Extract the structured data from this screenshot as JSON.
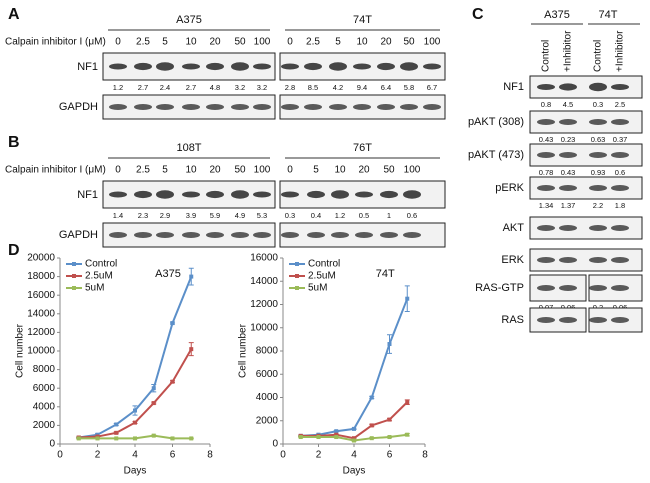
{
  "panel_a": {
    "label": "A",
    "row_label": "Calpain inhibitor I (μM)",
    "groups": [
      {
        "name": "A375",
        "concentrations": [
          "0",
          "2.5",
          "5",
          "10",
          "20",
          "50",
          "100"
        ],
        "blots": [
          "NF1",
          "GAPDH"
        ],
        "nf1_levels": [
          "1.2",
          "2.7",
          "2.4",
          "2.7",
          "4.8",
          "3.2",
          "3.2"
        ]
      },
      {
        "name": "74T",
        "concentrations": [
          "0",
          "2.5",
          "5",
          "10",
          "20",
          "50",
          "100"
        ],
        "nf1_levels": [
          "2.8",
          "8.5",
          "4.2",
          "9.4",
          "6.4",
          "5.8",
          "6.7"
        ]
      }
    ]
  },
  "panel_b": {
    "label": "B",
    "row_label": "Calpain inhibitor I (μM)",
    "groups": [
      {
        "name": "108T",
        "concentrations": [
          "0",
          "2.5",
          "5",
          "10",
          "20",
          "50",
          "100"
        ],
        "blots": [
          "NF1",
          "GAPDH"
        ],
        "nf1_levels": [
          "1.4",
          "2.3",
          "2.9",
          "3.9",
          "5.9",
          "4.9",
          "5.3"
        ]
      },
      {
        "name": "76T",
        "concentrations": [
          "0",
          "5",
          "10",
          "20",
          "50",
          "100"
        ],
        "nf1_levels": [
          "0.3",
          "0.4",
          "1.2",
          "0.5",
          "1",
          "0.6"
        ]
      }
    ]
  },
  "panel_c": {
    "label": "C",
    "groups": [
      {
        "name": "A375",
        "lanes": [
          "Control",
          "+Inhibitor"
        ]
      },
      {
        "name": "74T",
        "lanes": [
          "Control",
          "+Inhibitor"
        ]
      }
    ],
    "rows": [
      {
        "name": "NF1",
        "levels": [
          "0.8",
          "4.5",
          "0.3",
          "2.5"
        ]
      },
      {
        "name": "pAKT (308)",
        "levels": [
          "0.43",
          "0.23",
          "0.63",
          "0.37"
        ]
      },
      {
        "name": "pAKT (473)",
        "levels": [
          "0.78",
          "0.43",
          "0.93",
          "0.6"
        ]
      },
      {
        "name": "pERK",
        "levels": [
          "1.34",
          "1.37",
          "2.2",
          "1.8"
        ]
      },
      {
        "name": "AKT"
      },
      {
        "name": "ERK"
      },
      {
        "name": "RAS-GTP",
        "levels": [
          "0.07",
          "0.06",
          "0.2",
          "0.06"
        ]
      },
      {
        "name": "RAS"
      }
    ]
  },
  "panel_d": {
    "label": "D"
  },
  "chart_data": [
    {
      "type": "line",
      "title": "A375",
      "x_label": "Days",
      "y_label": "Cell number",
      "x": [
        1,
        2,
        3,
        4,
        5,
        6,
        7
      ],
      "xlim": [
        0,
        8
      ],
      "xticks": [
        0,
        2,
        4,
        6,
        8
      ],
      "ylim": [
        0,
        20000
      ],
      "yticks": [
        0,
        2000,
        4000,
        6000,
        8000,
        10000,
        12000,
        14000,
        16000,
        18000,
        20000
      ],
      "legend": "top-left",
      "series": [
        {
          "name": "Control",
          "color": "#5b8fc9",
          "values": [
            700,
            1000,
            2100,
            3600,
            6000,
            13000,
            18000
          ],
          "errors": [
            50,
            100,
            100,
            500,
            400,
            100,
            900
          ]
        },
        {
          "name": "2.5uM",
          "color": "#c0504d",
          "values": [
            700,
            800,
            1200,
            2300,
            4400,
            6700,
            10200
          ],
          "errors": [
            50,
            50,
            100,
            100,
            100,
            100,
            700
          ]
        },
        {
          "name": "5uM",
          "color": "#9bbb59",
          "values": [
            600,
            600,
            600,
            600,
            900,
            600,
            600
          ],
          "errors": [
            50,
            50,
            50,
            50,
            50,
            50,
            50
          ]
        }
      ]
    },
    {
      "type": "line",
      "title": "74T",
      "x_label": "Days",
      "y_label": "Cell number",
      "x": [
        1,
        2,
        3,
        4,
        5,
        6,
        7
      ],
      "xlim": [
        0,
        8
      ],
      "xticks": [
        0,
        2,
        4,
        6,
        8
      ],
      "ylim": [
        0,
        16000
      ],
      "yticks": [
        0,
        2000,
        4000,
        6000,
        8000,
        10000,
        12000,
        14000,
        16000
      ],
      "legend": "top-left",
      "series": [
        {
          "name": "Control",
          "color": "#5b8fc9",
          "values": [
            700,
            800,
            1100,
            1300,
            4000,
            8600,
            12500
          ],
          "errors": [
            50,
            50,
            50,
            50,
            100,
            800,
            1100
          ]
        },
        {
          "name": "2.5uM",
          "color": "#c0504d",
          "values": [
            700,
            700,
            800,
            500,
            1600,
            2100,
            3600
          ],
          "errors": [
            50,
            50,
            50,
            50,
            100,
            100,
            200
          ]
        },
        {
          "name": "5uM",
          "color": "#9bbb59",
          "values": [
            600,
            600,
            600,
            300,
            500,
            600,
            800
          ],
          "errors": [
            50,
            50,
            50,
            50,
            50,
            50,
            100
          ]
        }
      ]
    }
  ]
}
